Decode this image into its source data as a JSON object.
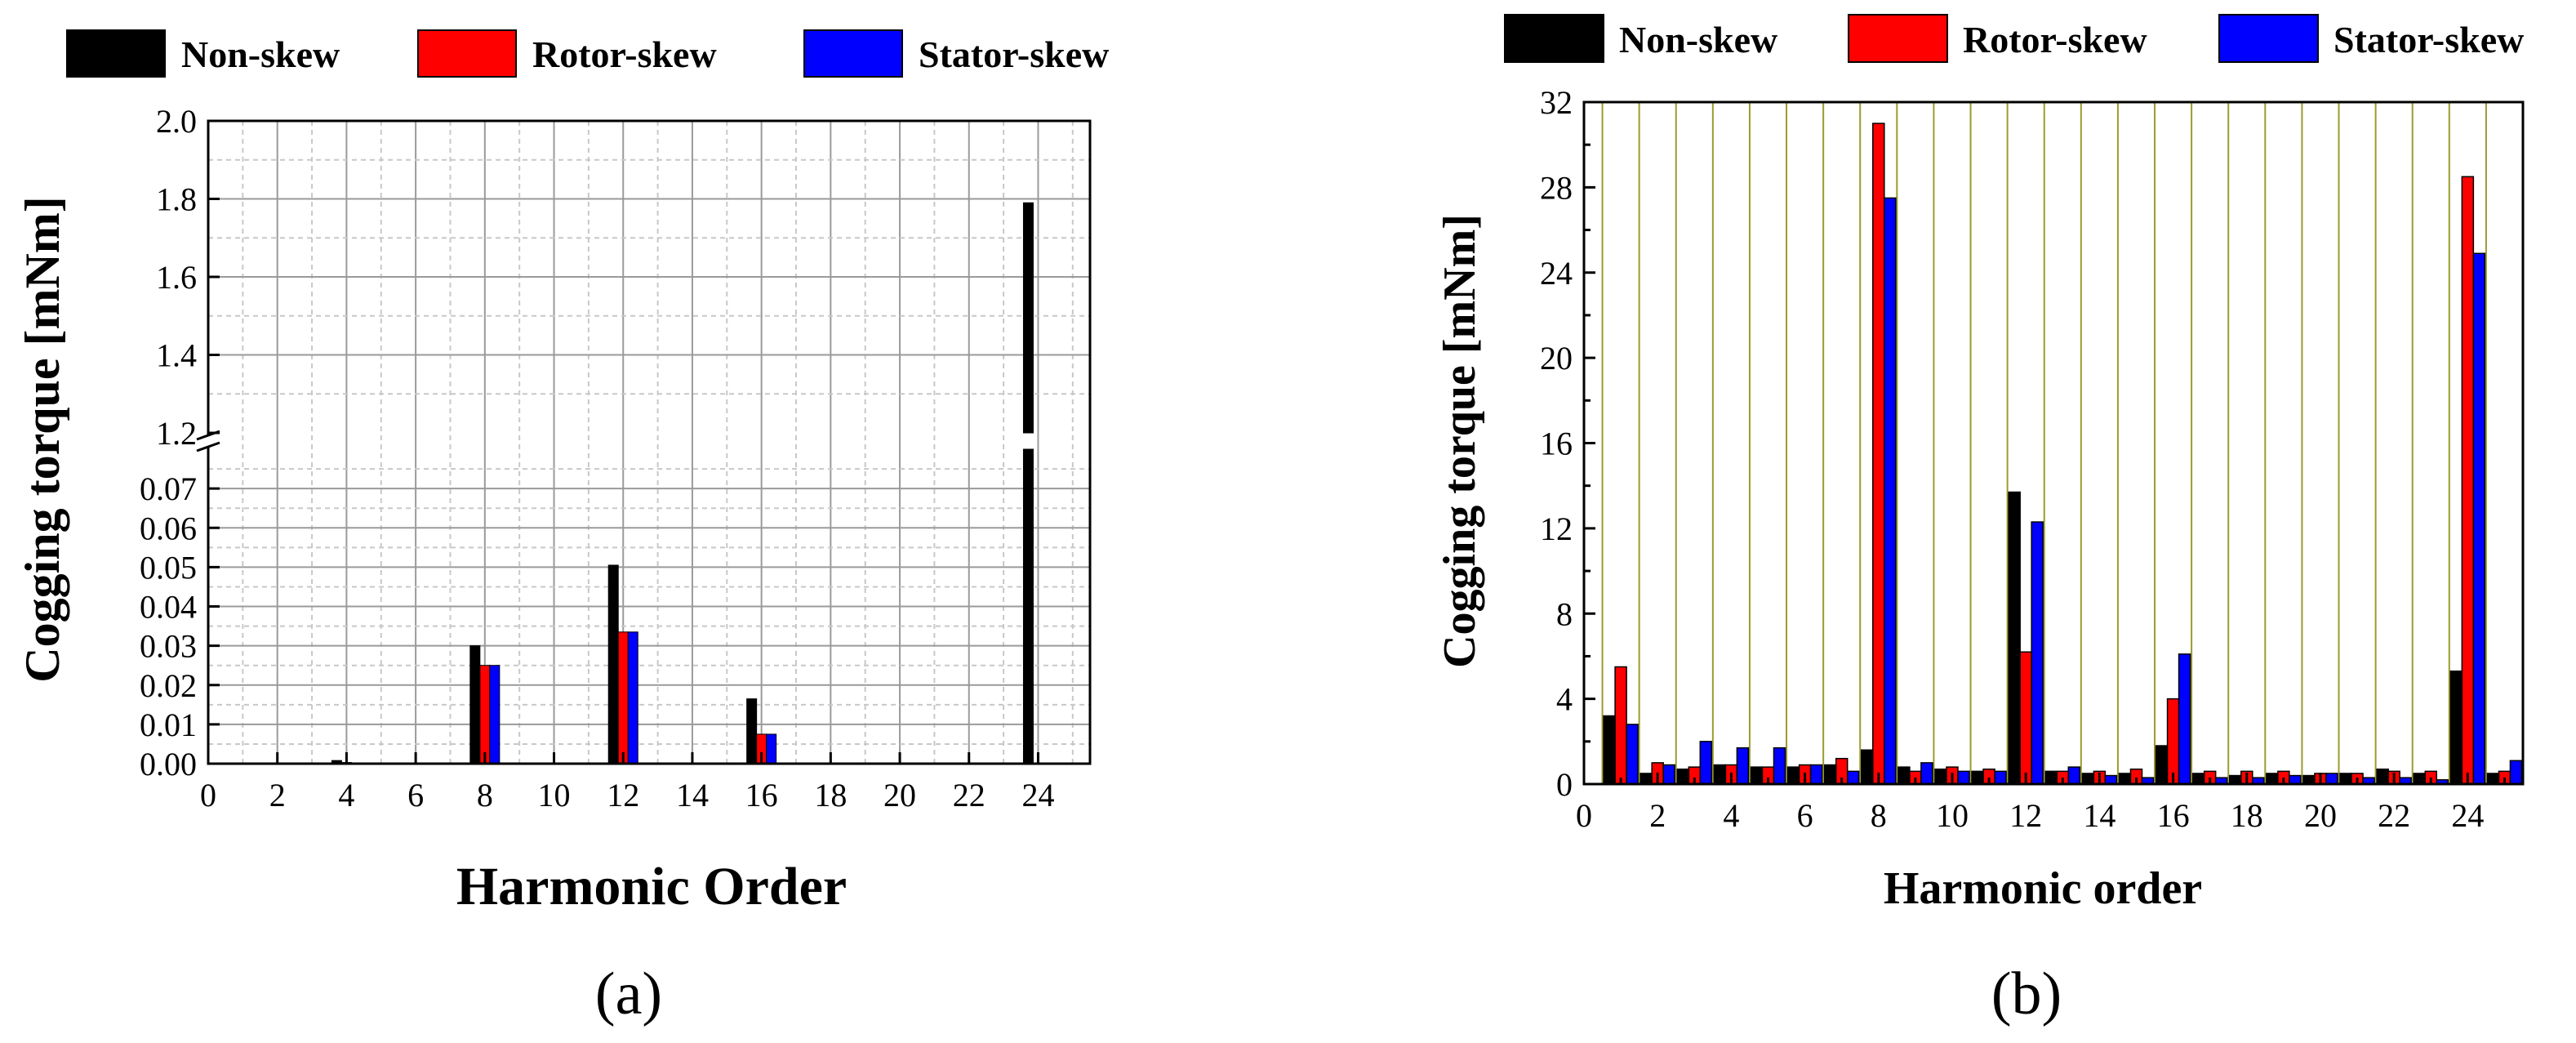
{
  "figure": {
    "panel_a_label": "(a)",
    "panel_b_label": "(b)"
  },
  "chart_data": [
    {
      "type": "bar",
      "panel": "(a)",
      "xlabel": "Harmonic Order",
      "ylabel": "Cogging torque [mNm]",
      "x_ticks": [
        "0",
        "2",
        "4",
        "6",
        "8",
        "10",
        "12",
        "14",
        "16",
        "18",
        "20",
        "22",
        "24"
      ],
      "y_ticks_lower": [
        "0.00",
        "0.01",
        "0.02",
        "0.03",
        "0.04",
        "0.05",
        "0.06",
        "0.07"
      ],
      "y_ticks_upper": [
        "1.2",
        "1.4",
        "1.6",
        "1.8",
        "2.0"
      ],
      "axis_break": {
        "lower_range": [
          0,
          0.08
        ],
        "upper_range": [
          1.2,
          2.0
        ]
      },
      "xlim": [
        0,
        25.5
      ],
      "grid": true,
      "legend_position": "top",
      "categories": [
        4,
        8,
        12,
        16,
        24
      ],
      "series": [
        {
          "name": "Non-skew",
          "color": "#000000",
          "values": [
            0.0008,
            0.03,
            0.0505,
            0.0165,
            1.79
          ]
        },
        {
          "name": "Rotor-skew",
          "color": "#ff0000",
          "values": [
            0.0003,
            0.025,
            0.0335,
            0.0075,
            0.0
          ]
        },
        {
          "name": "Stator-skew",
          "color": "#0000ff",
          "values": [
            0.0002,
            0.025,
            0.0335,
            0.0075,
            0.0
          ]
        }
      ]
    },
    {
      "type": "bar",
      "panel": "(b)",
      "xlabel": "Harmonic order",
      "ylabel": "Cogging torque [mNm]",
      "x_ticks": [
        "0",
        "2",
        "4",
        "6",
        "8",
        "10",
        "12",
        "14",
        "16",
        "18",
        "20",
        "22",
        "24"
      ],
      "y_ticks": [
        "0",
        "4",
        "8",
        "12",
        "16",
        "20",
        "24",
        "28",
        "32"
      ],
      "ylim": [
        0,
        32
      ],
      "xlim": [
        0,
        25.5
      ],
      "grid": true,
      "legend_position": "top",
      "categories": [
        1,
        2,
        3,
        4,
        5,
        6,
        7,
        8,
        9,
        10,
        11,
        12,
        13,
        14,
        15,
        16,
        17,
        18,
        19,
        20,
        21,
        22,
        23,
        24,
        25
      ],
      "series": [
        {
          "name": "Non-skew",
          "color": "#000000",
          "values": [
            3.2,
            0.5,
            0.7,
            0.9,
            0.8,
            0.8,
            0.9,
            1.6,
            0.8,
            0.7,
            0.6,
            13.7,
            0.6,
            0.5,
            0.5,
            1.8,
            0.5,
            0.4,
            0.5,
            0.4,
            0.5,
            0.7,
            0.5,
            5.3,
            0.5
          ]
        },
        {
          "name": "Rotor-skew",
          "color": "#ff0000",
          "values": [
            5.5,
            1.0,
            0.8,
            0.9,
            0.8,
            0.9,
            1.2,
            31.0,
            0.6,
            0.8,
            0.7,
            6.2,
            0.6,
            0.6,
            0.7,
            4.0,
            0.6,
            0.6,
            0.6,
            0.5,
            0.5,
            0.6,
            0.6,
            28.5,
            0.6
          ]
        },
        {
          "name": "Stator-skew",
          "color": "#0000ff",
          "values": [
            2.8,
            0.9,
            2.0,
            1.7,
            1.7,
            0.9,
            0.6,
            27.5,
            1.0,
            0.6,
            0.6,
            12.3,
            0.8,
            0.4,
            0.3,
            6.1,
            0.3,
            0.3,
            0.4,
            0.5,
            0.3,
            0.3,
            0.2,
            24.9,
            1.1
          ]
        }
      ]
    }
  ]
}
